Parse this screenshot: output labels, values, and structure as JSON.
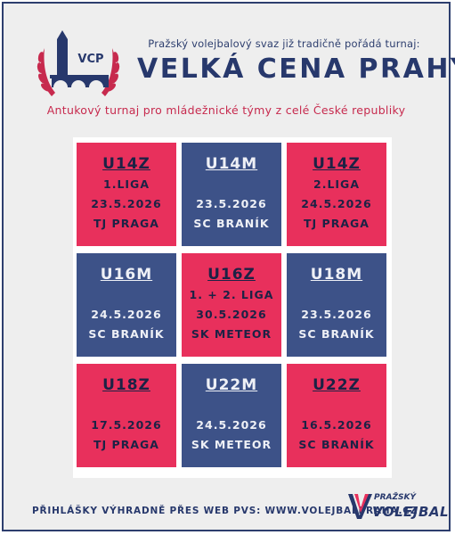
{
  "header": {
    "logo_text": "VCP",
    "intro": "Pražský volejbalový svaz již tradičně pořádá turnaj:",
    "title": "VELKÁ CENA PRAHY",
    "subtitle": "Antukový turnaj pro mládežnické týmy z celé České republiky"
  },
  "colors": {
    "pink": "#e8305c",
    "navy": "#3d5288",
    "title": "#27386c"
  },
  "grid": [
    {
      "category": "U14Z",
      "lines": [
        "1.LIGA",
        "23.5.2026",
        "TJ PRAGA"
      ],
      "color": "pink"
    },
    {
      "category": "U14M",
      "lines": [
        "23.5.2026",
        "SC BRANÍK"
      ],
      "color": "navy"
    },
    {
      "category": "U14Z",
      "lines": [
        "2.LIGA",
        "24.5.2026",
        "TJ PRAGA"
      ],
      "color": "pink"
    },
    {
      "category": "U16M",
      "lines": [
        "24.5.2026",
        "SC BRANÍK"
      ],
      "color": "navy"
    },
    {
      "category": "U16Z",
      "lines": [
        "1. + 2. LIGA",
        "30.5.2026",
        "SK METEOR"
      ],
      "color": "pink"
    },
    {
      "category": "U18M",
      "lines": [
        "23.5.2026",
        "SC BRANÍK"
      ],
      "color": "navy"
    },
    {
      "category": "U18Z",
      "lines": [
        "17.5.2026",
        "TJ PRAGA"
      ],
      "color": "pink"
    },
    {
      "category": "U22M",
      "lines": [
        "24.5.2026",
        "SK METEOR"
      ],
      "color": "navy"
    },
    {
      "category": "U22Z",
      "lines": [
        "16.5.2026",
        "SC BRANÍK"
      ],
      "color": "pink"
    }
  ],
  "footer": {
    "registration": "PŘIHLÁŠKY VÝHRADNĚ PŘES WEB PVS: WWW.VOLEJBALPRAHA.CZ",
    "logo_small": "PRAŽSKÝ",
    "logo_big": "VOLEJBAL"
  }
}
